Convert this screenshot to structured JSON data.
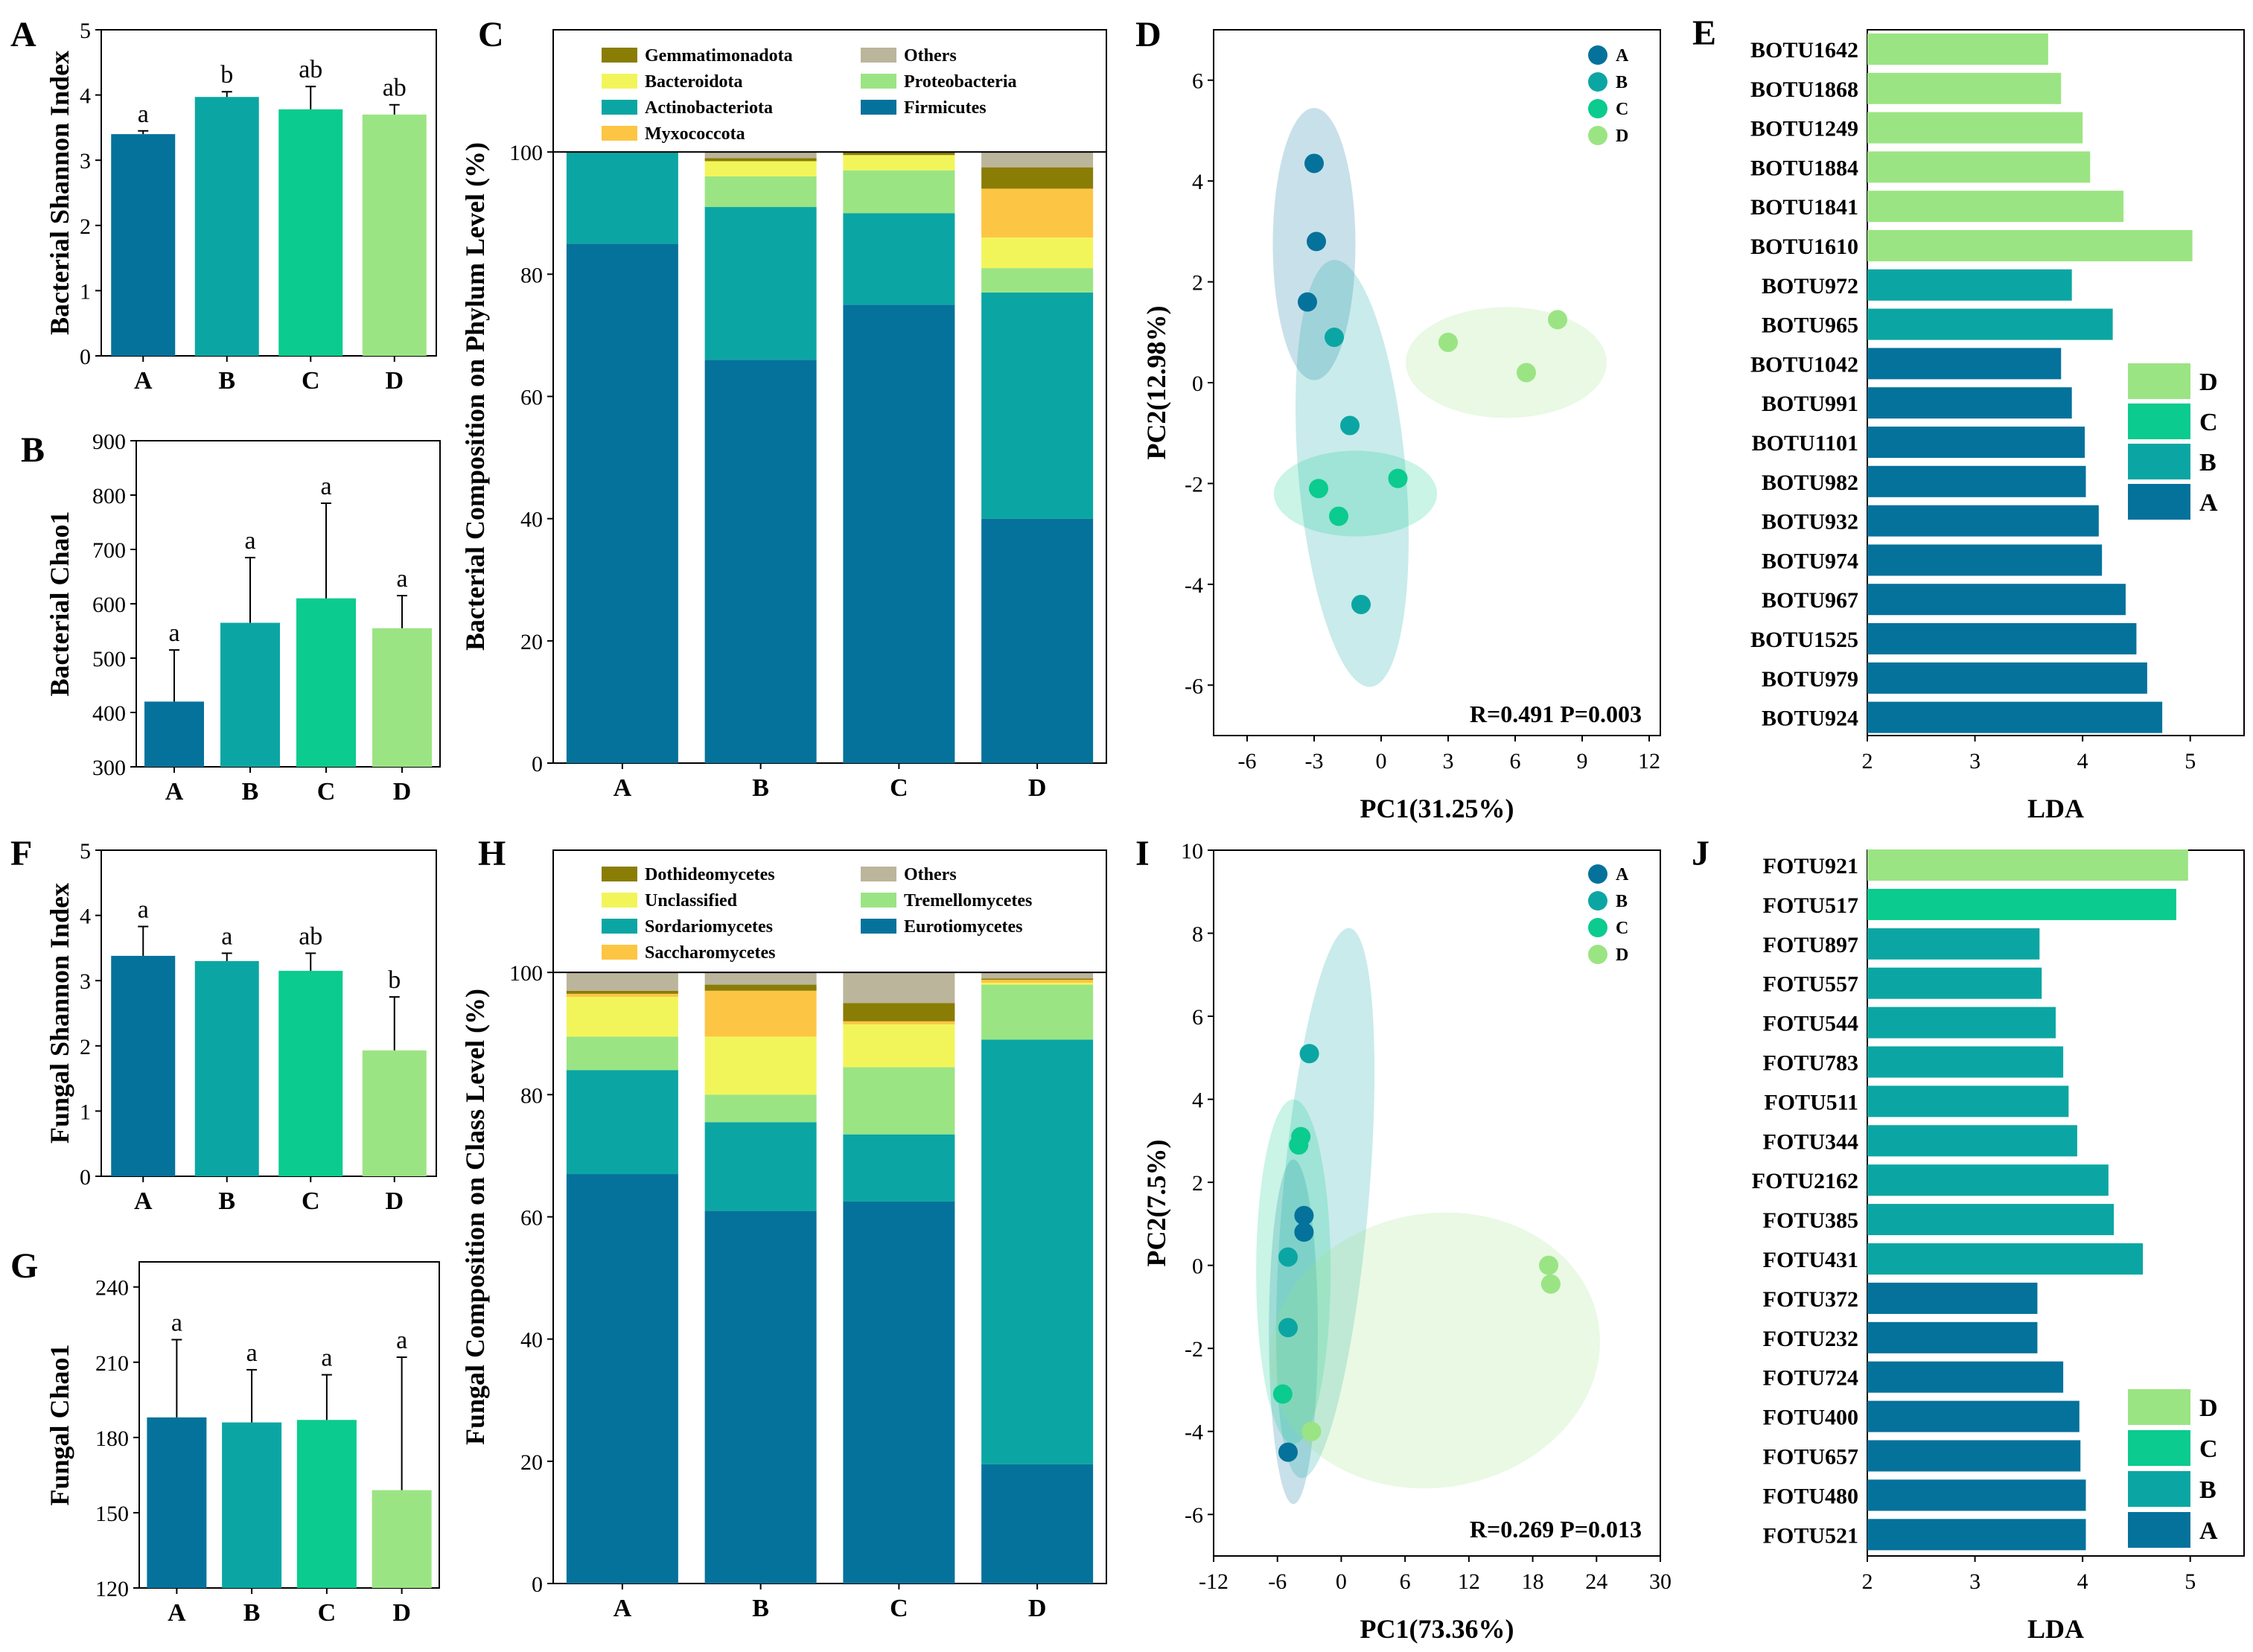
{
  "colors": {
    "A": "#05729b",
    "B": "#0ba6a3",
    "C": "#0bcb8e",
    "D": "#9be483"
  },
  "chart_data": [
    {
      "panel": "A",
      "type": "bar",
      "title": "",
      "categories": [
        "A",
        "B",
        "C",
        "D"
      ],
      "values": [
        3.4,
        3.97,
        3.78,
        3.7
      ],
      "errors": [
        0.05,
        0.08,
        0.35,
        0.15
      ],
      "letters": [
        "a",
        "b",
        "ab",
        "ab"
      ],
      "xlabel": "",
      "ylabel": "Bacterial Shannon Index",
      "ylim": [
        0,
        5
      ],
      "yticks": [
        0,
        1,
        2,
        3,
        4,
        5
      ],
      "ytick_labels": [
        "0",
        "1",
        "2",
        "3",
        "4",
        "5"
      ]
    },
    {
      "panel": "B",
      "type": "bar",
      "title": "",
      "categories": [
        "A",
        "B",
        "C",
        "D"
      ],
      "values": [
        420,
        565,
        610,
        555
      ],
      "errors": [
        95,
        120,
        175,
        60
      ],
      "letters": [
        "a",
        "a",
        "a",
        "a"
      ],
      "xlabel": "",
      "ylabel": "Bacterial Chao1",
      "ylim": [
        300,
        900
      ],
      "yticks": [
        300,
        400,
        500,
        600,
        700,
        800,
        900
      ],
      "ytick_labels": [
        "300",
        "400",
        "500",
        "600",
        "700",
        "800",
        "900"
      ]
    },
    {
      "panel": "C",
      "type": "bar",
      "stacked": true,
      "title": "",
      "categories": [
        "A",
        "B",
        "C",
        "D"
      ],
      "series": [
        {
          "name": "Firmicutes",
          "color": "#05729b",
          "values": [
            85,
            66,
            75,
            40
          ]
        },
        {
          "name": "Actinobacteriota",
          "color": "#0ba6a3",
          "values": [
            15,
            25,
            15,
            37
          ]
        },
        {
          "name": "Proteobacteria",
          "color": "#9be483",
          "values": [
            0,
            5,
            7,
            4
          ]
        },
        {
          "name": "Bacteroidota",
          "color": "#f2f55a",
          "values": [
            0,
            2.5,
            2.5,
            5
          ]
        },
        {
          "name": "Myxococcota",
          "color": "#fdc544",
          "values": [
            0,
            0,
            0,
            8
          ]
        },
        {
          "name": "Gemmatimonadota",
          "color": "#8a7d05",
          "values": [
            0,
            0.5,
            0.5,
            3.5
          ]
        },
        {
          "name": "Others",
          "color": "#bbb59c",
          "values": [
            0,
            1,
            0,
            2.5
          ]
        }
      ],
      "legend_order": [
        "Gemmatimonadota",
        "Others",
        "Bacteroidota",
        "Proteobacteria",
        "Actinobacteriota",
        "Firmicutes",
        "Myxococcota"
      ],
      "xlabel": "",
      "ylabel": "Bacterial Composition on Phylum Level (%)",
      "ylim": [
        0,
        120
      ],
      "yticks": [
        0,
        20,
        40,
        60,
        80,
        100
      ],
      "ytick_labels": [
        "0",
        "20",
        "40",
        "60",
        "80",
        "100"
      ]
    },
    {
      "panel": "D",
      "type": "scatter",
      "title": "",
      "xlabel": "PC1(31.25%)",
      "ylabel": "PC2(12.98%)",
      "xlim": [
        -7.5,
        12.5
      ],
      "ylim": [
        -7,
        7
      ],
      "xticks": [
        -6,
        -3,
        0,
        3,
        6,
        9,
        12
      ],
      "xtick_labels": [
        "-6",
        "-3",
        "0",
        "3",
        "6",
        "9",
        "12"
      ],
      "yticks": [
        -6,
        -4,
        -2,
        0,
        2,
        4,
        6
      ],
      "ytick_labels": [
        "-6",
        "-4",
        "-2",
        "0",
        "2",
        "4",
        "6"
      ],
      "groups": [
        {
          "name": "A",
          "points": [
            [
              -3,
              4.35
            ],
            [
              -2.9,
              2.8
            ],
            [
              -3.3,
              1.6
            ]
          ],
          "ellipse": {
            "cx": -3,
            "cy": 2.75,
            "rx": 1.85,
            "ry": 2.7,
            "angle": 0
          }
        },
        {
          "name": "B",
          "points": [
            [
              -2.1,
              0.9
            ],
            [
              -1.4,
              -0.85
            ],
            [
              -0.9,
              -4.4
            ]
          ],
          "ellipse": {
            "cx": -1.3,
            "cy": -1.8,
            "rx": 2.4,
            "ry": 4.25,
            "angle": -5
          }
        },
        {
          "name": "C",
          "points": [
            [
              -2.8,
              -2.1
            ],
            [
              -1.9,
              -2.65
            ],
            [
              0.75,
              -1.9
            ]
          ],
          "ellipse": {
            "cx": -1.15,
            "cy": -2.2,
            "rx": 3.65,
            "ry": 0.85,
            "angle": 0
          }
        },
        {
          "name": "D",
          "points": [
            [
              3,
              0.8
            ],
            [
              6.5,
              0.2
            ],
            [
              7.9,
              1.25
            ]
          ],
          "ellipse": {
            "cx": 5.6,
            "cy": 0.4,
            "rx": 4.5,
            "ry": 1.1,
            "angle": 0
          }
        }
      ],
      "annotation": "R=0.491 P=0.003"
    },
    {
      "panel": "E",
      "type": "bar",
      "orientation": "horizontal",
      "title": "",
      "xlabel": "LDA",
      "ylabel": "",
      "xlim": [
        2,
        5.5
      ],
      "xticks": [
        2,
        3,
        4,
        5
      ],
      "xtick_labels": [
        "2",
        "3",
        "4",
        "5"
      ],
      "categories": [
        "BOTU1642",
        "BOTU1868",
        "BOTU1249",
        "BOTU1884",
        "BOTU1841",
        "BOTU1610",
        "BOTU972",
        "BOTU965",
        "BOTU1042",
        "BOTU991",
        "BOTU1101",
        "BOTU982",
        "BOTU932",
        "BOTU974",
        "BOTU967",
        "BOTU1525",
        "BOTU979",
        "BOTU924"
      ],
      "values": [
        3.68,
        3.8,
        4.0,
        4.07,
        4.38,
        5.02,
        3.9,
        4.28,
        3.8,
        3.9,
        4.02,
        4.03,
        4.15,
        4.18,
        4.4,
        4.5,
        4.6,
        4.74
      ],
      "groups": [
        "D",
        "D",
        "D",
        "D",
        "D",
        "D",
        "B",
        "B",
        "A",
        "A",
        "A",
        "A",
        "A",
        "A",
        "A",
        "A",
        "A",
        "A"
      ],
      "legend": [
        "D",
        "C",
        "B",
        "A"
      ]
    },
    {
      "panel": "F",
      "type": "bar",
      "title": "",
      "categories": [
        "A",
        "B",
        "C",
        "D"
      ],
      "values": [
        3.38,
        3.3,
        3.15,
        1.93
      ],
      "errors": [
        0.45,
        0.12,
        0.27,
        0.82
      ],
      "letters": [
        "a",
        "a",
        "ab",
        "b"
      ],
      "xlabel": "",
      "ylabel": "Fungal Shannon Index",
      "ylim": [
        0,
        5
      ],
      "yticks": [
        0,
        1,
        2,
        3,
        4,
        5
      ],
      "ytick_labels": [
        "0",
        "1",
        "2",
        "3",
        "4",
        "5"
      ]
    },
    {
      "panel": "G",
      "type": "bar",
      "title": "",
      "categories": [
        "A",
        "B",
        "C",
        "D"
      ],
      "values": [
        188,
        186,
        187,
        159
      ],
      "errors": [
        31,
        21,
        18,
        53
      ],
      "letters": [
        "a",
        "a",
        "a",
        "a"
      ],
      "xlabel": "",
      "ylabel": "Fungal Chao1",
      "ylim": [
        120,
        250
      ],
      "yticks": [
        120,
        150,
        180,
        210,
        240
      ],
      "ytick_labels": [
        "120",
        "150",
        "180",
        "210",
        "240"
      ]
    },
    {
      "panel": "H",
      "type": "bar",
      "stacked": true,
      "title": "",
      "categories": [
        "A",
        "B",
        "C",
        "D"
      ],
      "series": [
        {
          "name": "Eurotiomycetes",
          "color": "#05729b",
          "values": [
            67,
            61,
            62.5,
            19.5
          ]
        },
        {
          "name": "Sordariomycetes",
          "color": "#0ba6a3",
          "values": [
            17,
            14.5,
            11,
            69.5
          ]
        },
        {
          "name": "Tremellomycetes",
          "color": "#9be483",
          "values": [
            5.5,
            4.5,
            11,
            9
          ]
        },
        {
          "name": "Unclassified",
          "color": "#f2f55a",
          "values": [
            6.5,
            9.5,
            7,
            0.3
          ]
        },
        {
          "name": "Saccharomycetes",
          "color": "#fdc544",
          "values": [
            0.5,
            7.5,
            0.5,
            0.5
          ]
        },
        {
          "name": "Dothideomycetes",
          "color": "#8a7d05",
          "values": [
            0.5,
            1,
            3,
            0.2
          ]
        },
        {
          "name": "Others",
          "color": "#bbb59c",
          "values": [
            3,
            2,
            5,
            1
          ]
        }
      ],
      "legend_order": [
        "Dothideomycetes",
        "Others",
        "Unclassified",
        "Tremellomycetes",
        "Sordariomycetes",
        "Eurotiomycetes",
        "Saccharomycetes"
      ],
      "xlabel": "",
      "ylabel": "Fungal Composition on Class Level (%)",
      "ylim": [
        0,
        120
      ],
      "yticks": [
        0,
        20,
        40,
        60,
        80,
        100
      ],
      "ytick_labels": [
        "0",
        "20",
        "40",
        "60",
        "80",
        "100"
      ]
    },
    {
      "panel": "I",
      "type": "scatter",
      "title": "",
      "xlabel": "PC1(73.36%)",
      "ylabel": "PC2(7.5%)",
      "xlim": [
        -12,
        30
      ],
      "ylim": [
        -7,
        10
      ],
      "xticks": [
        -12,
        -6,
        0,
        6,
        12,
        18,
        24,
        30
      ],
      "xtick_labels": [
        "-12",
        "-6",
        "0",
        "6",
        "12",
        "18",
        "24",
        "30"
      ],
      "yticks": [
        -6,
        -4,
        -2,
        0,
        2,
        4,
        6,
        8,
        10
      ],
      "ytick_labels": [
        "-6",
        "-4",
        "-2",
        "0",
        "2",
        "4",
        "6",
        "8",
        "10"
      ],
      "groups": [
        {
          "name": "A",
          "points": [
            [
              -3.5,
              1.2
            ],
            [
              -3.5,
              0.8
            ],
            [
              -5,
              -4.5
            ]
          ],
          "ellipse": {
            "cx": -4.5,
            "cy": -1.6,
            "rx": 2.3,
            "ry": 4.15,
            "angle": 0
          }
        },
        {
          "name": "B",
          "points": [
            [
              -3,
              5.1
            ],
            [
              -5,
              0.2
            ],
            [
              -5,
              -1.5
            ]
          ],
          "ellipse": {
            "cx": -1.5,
            "cy": 1.5,
            "rx": 4.05,
            "ry": 6.65,
            "angle": 5
          }
        },
        {
          "name": "C",
          "points": [
            [
              -3.8,
              3.1
            ],
            [
              -4,
              2.9
            ],
            [
              -5.5,
              -3.1
            ]
          ],
          "ellipse": {
            "cx": -4.5,
            "cy": -0.15,
            "rx": 3.5,
            "ry": 4.15,
            "angle": 0
          }
        },
        {
          "name": "D",
          "points": [
            [
              -2.8,
              -4
            ],
            [
              19.5,
              0
            ],
            [
              19.7,
              -0.45
            ]
          ],
          "ellipse": {
            "cx": 8.8,
            "cy": -2.05,
            "rx": 15.6,
            "ry": 3.3,
            "angle": -10
          }
        }
      ],
      "annotation": "R=0.269 P=0.013"
    },
    {
      "panel": "J",
      "type": "bar",
      "orientation": "horizontal",
      "title": "",
      "xlabel": "LDA",
      "ylabel": "",
      "xlim": [
        2,
        5.5
      ],
      "xticks": [
        2,
        3,
        4,
        5
      ],
      "xtick_labels": [
        "2",
        "3",
        "4",
        "5"
      ],
      "categories": [
        "FOTU921",
        "FOTU517",
        "FOTU897",
        "FOTU557",
        "FOTU544",
        "FOTU783",
        "FOTU511",
        "FOTU344",
        "FOTU2162",
        "FOTU385",
        "FOTU431",
        "FOTU372",
        "FOTU232",
        "FOTU724",
        "FOTU400",
        "FOTU657",
        "FOTU480",
        "FOTU521"
      ],
      "values": [
        4.98,
        4.87,
        3.6,
        3.62,
        3.75,
        3.82,
        3.87,
        3.95,
        4.24,
        4.29,
        4.56,
        3.58,
        3.58,
        3.82,
        3.97,
        3.98,
        4.03,
        4.03
      ],
      "groups": [
        "D",
        "C",
        "B",
        "B",
        "B",
        "B",
        "B",
        "B",
        "B",
        "B",
        "B",
        "A",
        "A",
        "A",
        "A",
        "A",
        "A",
        "A"
      ],
      "legend": [
        "D",
        "C",
        "B",
        "A"
      ]
    }
  ]
}
